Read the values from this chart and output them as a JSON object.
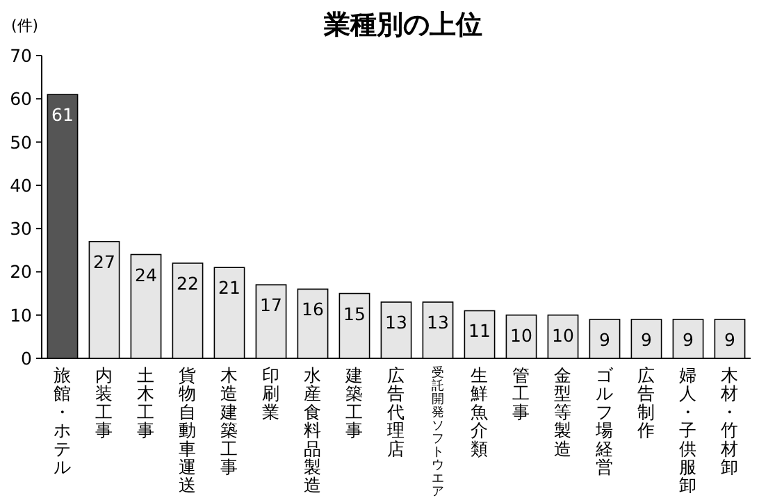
{
  "chart_data": {
    "type": "bar",
    "title": "業種別の上位",
    "ylabel": "(件)",
    "categories": [
      "旅館・ホテル",
      "内装工事",
      "土木工事",
      "貨物自動車運送",
      "木造建築工事",
      "印刷業",
      "水産食料品製造",
      "建築工事",
      "広告代理店",
      "受託開発ソフトウエア",
      "生鮮魚介類",
      "管工事",
      "金型等製造",
      "ゴルフ場経営",
      "広告制作",
      "婦人・子供服卸",
      "木材・竹材卸"
    ],
    "values": [
      61,
      27,
      24,
      22,
      21,
      17,
      16,
      15,
      13,
      13,
      11,
      10,
      10,
      9,
      9,
      9,
      9
    ],
    "colors": [
      "#555555",
      "#e6e6e6",
      "#e6e6e6",
      "#e6e6e6",
      "#e6e6e6",
      "#e6e6e6",
      "#e6e6e6",
      "#e6e6e6",
      "#e6e6e6",
      "#e6e6e6",
      "#e6e6e6",
      "#e6e6e6",
      "#e6e6e6",
      "#e6e6e6",
      "#e6e6e6",
      "#e6e6e6",
      "#e6e6e6"
    ],
    "ylim": [
      0,
      70
    ],
    "yticks": [
      0,
      10,
      20,
      30,
      40,
      50,
      60,
      70
    ],
    "data_labels": true
  }
}
